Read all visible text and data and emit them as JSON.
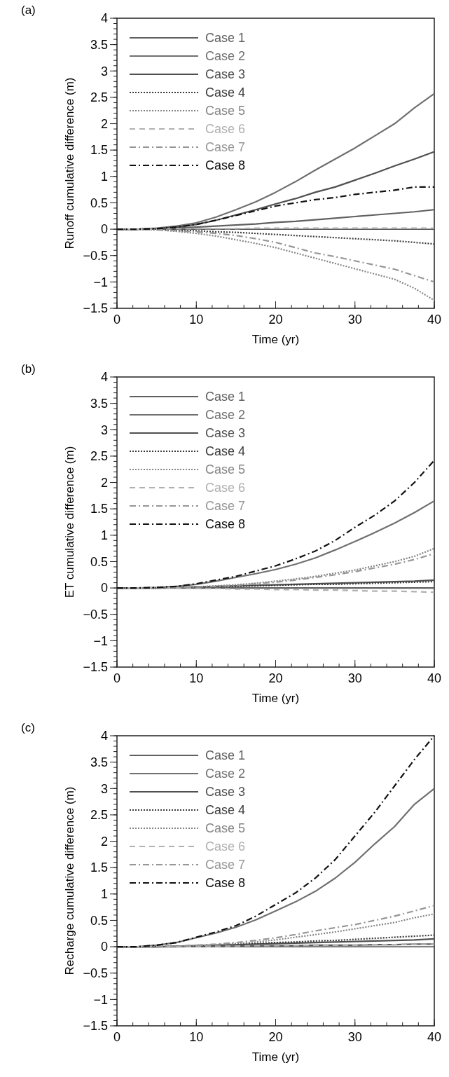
{
  "chart_data": [
    {
      "type": "line",
      "title": "(a)",
      "xlabel": "Time (yr)",
      "ylabel": "Runoff cumulative difference (m)",
      "x": [
        0,
        2.5,
        5,
        7.5,
        10,
        12.5,
        15,
        17.5,
        20,
        22.5,
        25,
        27.5,
        30,
        32.5,
        35,
        37.5,
        40
      ],
      "xlim": [
        0,
        40
      ],
      "xticks": [
        0,
        10,
        20,
        30,
        40
      ],
      "ylim": [
        -1.5,
        4
      ],
      "yticks": [
        -1.5,
        -1,
        -0.5,
        0,
        0.5,
        1,
        1.5,
        2,
        2.5,
        3,
        3.5,
        4
      ],
      "legend": "top left",
      "series": [
        {
          "name": "Case 1",
          "color": "#606060",
          "line_style": "solid",
          "values": [
            0,
            0,
            0.01,
            0.02,
            0.04,
            0.06,
            0.08,
            0.1,
            0.13,
            0.15,
            0.18,
            0.21,
            0.24,
            0.27,
            0.3,
            0.33,
            0.37
          ]
        },
        {
          "name": "Case 2",
          "color": "#707070",
          "line_style": "solid",
          "values": [
            0,
            0,
            0.02,
            0.06,
            0.12,
            0.23,
            0.37,
            0.52,
            0.7,
            0.9,
            1.12,
            1.33,
            1.54,
            1.77,
            2.0,
            2.3,
            2.57
          ]
        },
        {
          "name": "Case 3",
          "color": "#505050",
          "line_style": "solid",
          "values": [
            0,
            0,
            0.01,
            0.04,
            0.09,
            0.17,
            0.27,
            0.37,
            0.48,
            0.58,
            0.7,
            0.8,
            0.93,
            1.06,
            1.2,
            1.33,
            1.47
          ]
        },
        {
          "name": "Case 4",
          "color": "#3c3c3c",
          "line_style": "dotted",
          "values": [
            0,
            0,
            -0.01,
            -0.02,
            -0.03,
            -0.05,
            -0.06,
            -0.08,
            -0.1,
            -0.12,
            -0.14,
            -0.16,
            -0.18,
            -0.2,
            -0.22,
            -0.25,
            -0.28
          ]
        },
        {
          "name": "Case 5",
          "color": "#858585",
          "line_style": "dotted",
          "values": [
            0,
            0,
            -0.01,
            -0.04,
            -0.08,
            -0.13,
            -0.2,
            -0.27,
            -0.35,
            -0.45,
            -0.55,
            -0.65,
            -0.75,
            -0.85,
            -0.95,
            -1.12,
            -1.35
          ]
        },
        {
          "name": "Case 6",
          "color": "#b0b0b0",
          "line_style": "dashed",
          "values": [
            0,
            0,
            0,
            0.01,
            0.01,
            0.01,
            0.01,
            0.02,
            0.02,
            0.02,
            0.02,
            0.02,
            0.02,
            0.02,
            0.02,
            0.02,
            0.02
          ]
        },
        {
          "name": "Case 7",
          "color": "#969696",
          "line_style": "dashdot",
          "values": [
            0,
            0,
            -0.01,
            -0.03,
            -0.05,
            -0.08,
            -0.12,
            -0.18,
            -0.25,
            -0.35,
            -0.45,
            -0.52,
            -0.6,
            -0.68,
            -0.76,
            -0.88,
            -1.0
          ]
        },
        {
          "name": "Case 8",
          "color": "#111111",
          "line_style": "dashdot",
          "values": [
            0,
            0,
            0.01,
            0.04,
            0.09,
            0.17,
            0.26,
            0.35,
            0.44,
            0.5,
            0.56,
            0.6,
            0.66,
            0.7,
            0.74,
            0.8,
            0.8
          ]
        }
      ]
    },
    {
      "type": "line",
      "title": "(b)",
      "xlabel": "Time (yr)",
      "ylabel": "ET cumulative difference (m)",
      "x": [
        0,
        2.5,
        5,
        7.5,
        10,
        12.5,
        15,
        17.5,
        20,
        22.5,
        25,
        27.5,
        30,
        32.5,
        35,
        37.5,
        40
      ],
      "xlim": [
        0,
        40
      ],
      "xticks": [
        0,
        10,
        20,
        30,
        40
      ],
      "ylim": [
        -1.5,
        4
      ],
      "yticks": [
        -1.5,
        -1,
        -0.5,
        0,
        0.5,
        1,
        1.5,
        2,
        2.5,
        3,
        3.5,
        4
      ],
      "legend": "top left",
      "series": [
        {
          "name": "Case 1",
          "color": "#606060",
          "line_style": "solid",
          "values": [
            0,
            0,
            0,
            0,
            0,
            0,
            0,
            0,
            0,
            0,
            0,
            0,
            0,
            0,
            0,
            0,
            0
          ]
        },
        {
          "name": "Case 2",
          "color": "#707070",
          "line_style": "solid",
          "values": [
            0,
            0,
            0.01,
            0.03,
            0.07,
            0.13,
            0.2,
            0.27,
            0.35,
            0.45,
            0.57,
            0.72,
            0.88,
            1.05,
            1.23,
            1.43,
            1.65
          ]
        },
        {
          "name": "Case 3",
          "color": "#505050",
          "line_style": "solid",
          "values": [
            0,
            0,
            0,
            0.01,
            0.02,
            0.03,
            0.04,
            0.05,
            0.06,
            0.07,
            0.08,
            0.09,
            0.1,
            0.11,
            0.12,
            0.13,
            0.15
          ]
        },
        {
          "name": "Case 4",
          "color": "#3c3c3c",
          "line_style": "dotted",
          "values": [
            0,
            0,
            0,
            0.01,
            0.01,
            0.02,
            0.03,
            0.04,
            0.05,
            0.06,
            0.07,
            0.07,
            0.08,
            0.09,
            0.1,
            0.11,
            0.12
          ]
        },
        {
          "name": "Case 5",
          "color": "#858585",
          "line_style": "dotted",
          "values": [
            0,
            0,
            0,
            0.01,
            0.02,
            0.04,
            0.06,
            0.09,
            0.13,
            0.17,
            0.22,
            0.28,
            0.34,
            0.42,
            0.5,
            0.6,
            0.75
          ]
        },
        {
          "name": "Case 6",
          "color": "#b0b0b0",
          "line_style": "dashed",
          "values": [
            0,
            0,
            0,
            0,
            -0.01,
            -0.01,
            -0.02,
            -0.02,
            -0.03,
            -0.03,
            -0.04,
            -0.04,
            -0.05,
            -0.06,
            -0.06,
            -0.07,
            -0.08
          ]
        },
        {
          "name": "Case 7",
          "color": "#969696",
          "line_style": "dashdot",
          "values": [
            0,
            0,
            0,
            0.01,
            0.02,
            0.03,
            0.05,
            0.08,
            0.11,
            0.15,
            0.2,
            0.25,
            0.31,
            0.38,
            0.45,
            0.54,
            0.65
          ]
        },
        {
          "name": "Case 8",
          "color": "#111111",
          "line_style": "dashdot",
          "values": [
            0,
            0,
            0.01,
            0.03,
            0.08,
            0.15,
            0.22,
            0.32,
            0.42,
            0.55,
            0.7,
            0.9,
            1.15,
            1.38,
            1.65,
            2.0,
            2.42
          ]
        }
      ]
    },
    {
      "type": "line",
      "title": "(c)",
      "xlabel": "Time (yr)",
      "ylabel": "Recharge cumulative difference (m)",
      "x": [
        0,
        2.5,
        5,
        7.5,
        10,
        12.5,
        15,
        17.5,
        20,
        22.5,
        25,
        27.5,
        30,
        32.5,
        35,
        37.5,
        40
      ],
      "xlim": [
        0,
        40
      ],
      "xticks": [
        0,
        10,
        20,
        30,
        40
      ],
      "ylim": [
        -1.5,
        4
      ],
      "yticks": [
        -1.5,
        -1,
        -0.5,
        0,
        0.5,
        1,
        1.5,
        2,
        2.5,
        3,
        3.5,
        4
      ],
      "legend": "top left",
      "series": [
        {
          "name": "Case 1",
          "color": "#606060",
          "line_style": "solid",
          "values": [
            0,
            0,
            0,
            0,
            0.01,
            0.01,
            0.01,
            0.02,
            0.02,
            0.02,
            0.03,
            0.03,
            0.03,
            0.04,
            0.04,
            0.05,
            0.05
          ]
        },
        {
          "name": "Case 2",
          "color": "#707070",
          "line_style": "solid",
          "values": [
            0,
            0,
            0.03,
            0.08,
            0.17,
            0.26,
            0.37,
            0.51,
            0.68,
            0.85,
            1.05,
            1.3,
            1.6,
            1.95,
            2.28,
            2.7,
            3.0
          ]
        },
        {
          "name": "Case 3",
          "color": "#505050",
          "line_style": "solid",
          "values": [
            0,
            0,
            0,
            0.01,
            0.02,
            0.03,
            0.04,
            0.05,
            0.06,
            0.07,
            0.08,
            0.09,
            0.1,
            0.11,
            0.12,
            0.13,
            0.15
          ]
        },
        {
          "name": "Case 4",
          "color": "#3c3c3c",
          "line_style": "dotted",
          "values": [
            0,
            0,
            0,
            0.01,
            0.02,
            0.03,
            0.05,
            0.06,
            0.08,
            0.09,
            0.11,
            0.12,
            0.14,
            0.16,
            0.18,
            0.2,
            0.22
          ]
        },
        {
          "name": "Case 5",
          "color": "#858585",
          "line_style": "dotted",
          "values": [
            0,
            0,
            0,
            0.01,
            0.02,
            0.04,
            0.06,
            0.09,
            0.13,
            0.18,
            0.23,
            0.28,
            0.34,
            0.4,
            0.46,
            0.55,
            0.62
          ]
        },
        {
          "name": "Case 6",
          "color": "#b0b0b0",
          "line_style": "dashed",
          "values": [
            0,
            0,
            0,
            0,
            0.01,
            0.01,
            0.01,
            0.02,
            0.02,
            0.02,
            0.03,
            0.03,
            0.03,
            0.04,
            0.04,
            0.05,
            0.05
          ]
        },
        {
          "name": "Case 7",
          "color": "#969696",
          "line_style": "dashdot",
          "values": [
            0,
            0,
            0,
            0.01,
            0.03,
            0.05,
            0.08,
            0.12,
            0.17,
            0.23,
            0.3,
            0.36,
            0.42,
            0.5,
            0.58,
            0.68,
            0.78
          ]
        },
        {
          "name": "Case 8",
          "color": "#111111",
          "line_style": "dashdot",
          "values": [
            0,
            0,
            0.03,
            0.08,
            0.18,
            0.28,
            0.4,
            0.58,
            0.8,
            1.02,
            1.3,
            1.65,
            2.1,
            2.55,
            3.05,
            3.55,
            4.0
          ]
        }
      ]
    }
  ]
}
